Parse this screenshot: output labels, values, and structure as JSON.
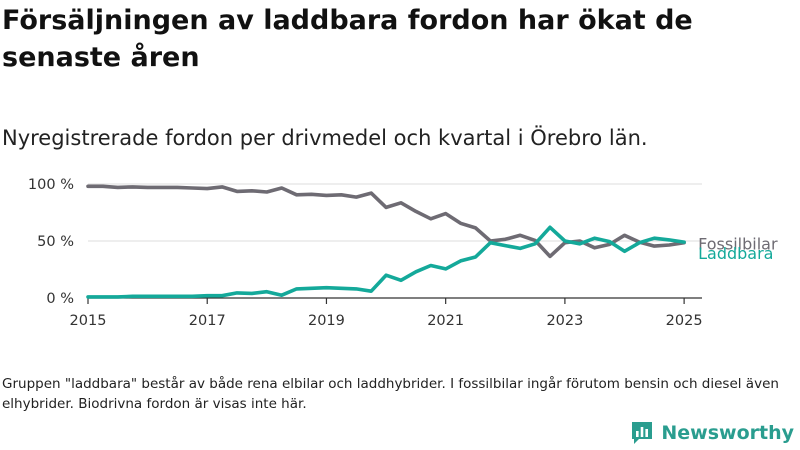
{
  "title": "Försäljningen av laddbara fordon har ökat de senaste åren",
  "subtitle": "Nyregistrerade fordon per drivmedel och kvartal i Örebro län.",
  "footnote": "Gruppen \"laddbara\" består av både rena elbilar och laddhybrider. I fossilbilar ingår förutom bensin och diesel även elhybrider. Biodrivna fordon är visas inte här.",
  "brand": {
    "name": "Newsworthy",
    "icon": "newsworthy-logo-icon"
  },
  "chart_data": {
    "type": "line",
    "title": "Försäljningen av laddbara fordon har ökat de senaste åren",
    "subtitle": "Nyregistrerade fordon per drivmedel och kvartal i Örebro län.",
    "xlabel": "",
    "ylabel": "",
    "x_ticks": [
      "2015",
      "2017",
      "2019",
      "2021",
      "2023",
      "2025"
    ],
    "y_ticks": [
      "0 %",
      "50 %",
      "100 %"
    ],
    "xlim": [
      2015,
      2025.3
    ],
    "ylim": [
      0,
      100
    ],
    "grid": "horizontal",
    "legend": "direct labels at line ends",
    "x": [
      2015.0,
      2015.25,
      2015.5,
      2015.75,
      2016.0,
      2016.25,
      2016.5,
      2016.75,
      2017.0,
      2017.25,
      2017.5,
      2017.75,
      2018.0,
      2018.25,
      2018.5,
      2018.75,
      2019.0,
      2019.25,
      2019.5,
      2019.75,
      2020.0,
      2020.25,
      2020.5,
      2020.75,
      2021.0,
      2021.25,
      2021.5,
      2021.75,
      2022.0,
      2022.25,
      2022.5,
      2022.75,
      2023.0,
      2023.25,
      2023.5,
      2023.75,
      2024.0,
      2024.25,
      2024.5,
      2024.75,
      2025.0
    ],
    "series": [
      {
        "name": "Fossilbilar",
        "color": "#6e6b73",
        "values": [
          98,
          98,
          97,
          97.5,
          97,
          97,
          97,
          96.5,
          96,
          97.5,
          93.5,
          94,
          93,
          96.5,
          90.5,
          91,
          90,
          90.5,
          88.5,
          92,
          79.5,
          83.5,
          76,
          69.5,
          74,
          65.5,
          61.5,
          50,
          51.5,
          55,
          50.5,
          36.5,
          48.5,
          50,
          44,
          47,
          55,
          49,
          45.5,
          46.5,
          48.5
        ]
      },
      {
        "name": "Laddbara",
        "color": "#14a99a",
        "values": [
          1,
          1,
          1,
          1.5,
          1.5,
          1.5,
          1.5,
          1.5,
          2,
          2,
          4.5,
          4,
          5.5,
          2.5,
          8,
          8.5,
          9,
          8.5,
          8,
          6,
          20,
          15.5,
          23,
          28.5,
          25.5,
          32.5,
          36,
          48.5,
          46,
          43.5,
          47.5,
          62,
          50,
          47.5,
          52.5,
          49.5,
          41,
          48.5,
          52.5,
          51,
          49
        ]
      }
    ]
  }
}
